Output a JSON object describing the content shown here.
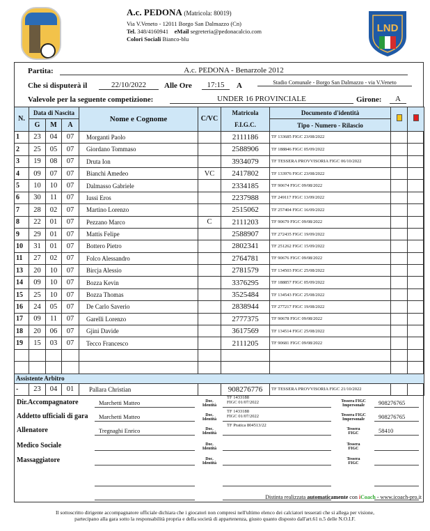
{
  "header": {
    "club": "A.c. PEDONA",
    "matricola": "(Matricola: 80019)",
    "address": "Via V.Veneto - 12011 Borgo San Dalmazzo (Cn)",
    "tel_label": "Tel.",
    "tel": "348/4160941",
    "email_label": "eMail",
    "email": "segreteria@pedonacalcio.com",
    "colors_label": "Colori Sociali",
    "colors": "Bianco-blu",
    "logo_left_text": "A.C. PEDONA BORGO S. DALMAZZO",
    "logo_right_text": "LND"
  },
  "match": {
    "partita_label": "Partita:",
    "partita": "A.c. PEDONA - Benarzole 2012",
    "date_label": "Che si disputerà il",
    "date": "22/10/2022",
    "time_label": "Alle Ore",
    "time": "17:15",
    "at_label": "A",
    "venue": "Stadio Comunale - Borgo San Dalmazzo - via V.Veneto",
    "comp_label": "Valevole per la seguente competizione:",
    "competition": "UNDER 16 PROVINCIALE",
    "girone_label": "Girone:",
    "girone": "A"
  },
  "columns": {
    "n": "N.",
    "birth": "Data di Nascita",
    "g": "G",
    "m": "M",
    "a": "A",
    "name": "Nome e Cognome",
    "cvc": "C/VC",
    "mat1": "Matricola",
    "mat2": "F.I.G.C.",
    "doc1": "Documento d'identità",
    "doc2": "Tipo - Numero - Rilascio",
    "yellow": "#f5c518",
    "red": "#e02020"
  },
  "players": [
    {
      "n": "1",
      "g": "23",
      "m": "04",
      "a": "07",
      "name": "Morganti Paolo",
      "cvc": "",
      "mat": "2111186",
      "doc": "TF  133685  FIGC 23/08/2022"
    },
    {
      "n": "2",
      "g": "25",
      "m": "05",
      "a": "07",
      "name": "Giordano Tommaso",
      "cvc": "",
      "mat": "2588906",
      "doc": "TF  188846  FIGC 05/09/2022"
    },
    {
      "n": "3",
      "g": "19",
      "m": "08",
      "a": "07",
      "name": "Druta Ion",
      "cvc": "",
      "mat": "3934079",
      "doc": "TF  TESSERA PROVVISORIA  FIGC 06/10/2022"
    },
    {
      "n": "4",
      "g": "09",
      "m": "07",
      "a": "07",
      "name": "Bianchi Amedeo",
      "cvc": "VC",
      "mat": "2417802",
      "doc": "TF  133976  FIGC 23/08/2022"
    },
    {
      "n": "5",
      "g": "10",
      "m": "10",
      "a": "07",
      "name": "Dalmasso Gabriele",
      "cvc": "",
      "mat": "2334185",
      "doc": "TF  90674  FIGC 09/08/2022"
    },
    {
      "n": "6",
      "g": "30",
      "m": "11",
      "a": "07",
      "name": "Iussi Eros",
      "cvc": "",
      "mat": "2237988",
      "doc": "TF  249117  FIGC 13/09/2022"
    },
    {
      "n": "7",
      "g": "28",
      "m": "02",
      "a": "07",
      "name": "Martino Lorenzo",
      "cvc": "",
      "mat": "2515062",
      "doc": "TF  257404  FIGC 16/09/2022"
    },
    {
      "n": "8",
      "g": "22",
      "m": "01",
      "a": "07",
      "name": "Pezzano Marco",
      "cvc": "C",
      "mat": "2111203",
      "doc": "TF  90679  FIGC 09/08/2022"
    },
    {
      "n": "9",
      "g": "29",
      "m": "01",
      "a": "07",
      "name": "Mattis Felipe",
      "cvc": "",
      "mat": "2588907",
      "doc": "TF  272435  FIGC 19/09/2022"
    },
    {
      "n": "10",
      "g": "31",
      "m": "01",
      "a": "07",
      "name": "Bottero Pietro",
      "cvc": "",
      "mat": "2802341",
      "doc": "TF  251262  FIGC 15/09/2022"
    },
    {
      "n": "11",
      "g": "27",
      "m": "02",
      "a": "07",
      "name": "Folco Alessandro",
      "cvc": "",
      "mat": "2764781",
      "doc": "TF  90676  FIGC 09/08/2022"
    },
    {
      "n": "13",
      "g": "20",
      "m": "10",
      "a": "07",
      "name": "Bircja Alessio",
      "cvc": "",
      "mat": "2781579",
      "doc": "TF  134503  FIGC 25/08/2022"
    },
    {
      "n": "14",
      "g": "09",
      "m": "10",
      "a": "07",
      "name": "Bozza Kevin",
      "cvc": "",
      "mat": "3376295",
      "doc": "TF  188857  FIGC 05/09/2022"
    },
    {
      "n": "15",
      "g": "25",
      "m": "10",
      "a": "07",
      "name": "Bozza Thomas",
      "cvc": "",
      "mat": "3525484",
      "doc": "TF  134543  FIGC 25/08/2022"
    },
    {
      "n": "16",
      "g": "24",
      "m": "05",
      "a": "07",
      "name": "De Carlo Saverio",
      "cvc": "",
      "mat": "2838944",
      "doc": "TF  277217  FIGC 19/08/2022"
    },
    {
      "n": "17",
      "g": "09",
      "m": "11",
      "a": "07",
      "name": "Garelli Lorenzo",
      "cvc": "",
      "mat": "2777375",
      "doc": "TF  90678  FIGC 09/08/2022"
    },
    {
      "n": "18",
      "g": "20",
      "m": "06",
      "a": "07",
      "name": "Gjini Davide",
      "cvc": "",
      "mat": "3617569",
      "doc": "TF  134514  FIGC 25/08/2022"
    },
    {
      "n": "19",
      "g": "15",
      "m": "03",
      "a": "07",
      "name": "Tecco Francesco",
      "cvc": "",
      "mat": "2111205",
      "doc": "TF  90681  FIGC 09/08/2022"
    }
  ],
  "assistant": {
    "section": "Assistente Arbitro",
    "n": "-",
    "g": "23",
    "m": "04",
    "a": "01",
    "name": "Pallara Christian",
    "mat": "908276776",
    "doc": "TF  TESSERA PROVVISORIA  FIGC 21/10/2022"
  },
  "staff": {
    "doc_label1": "Doc.",
    "doc_label2": "Identità",
    "tess_label1": "Tessera FIGC",
    "tess_label2": "Impersonale",
    "tess_short1": "Tessera",
    "tess_short2": "FIGC",
    "dir": {
      "label": "Dir.Accompagnatore",
      "name": "Marchetti Matteo",
      "doc1": "TF  1433188",
      "doc2": "FIGC 01/07/2022",
      "tess": "908276765"
    },
    "addetto": {
      "label": "Addetto ufficiali di gara",
      "name": "Marchetti Matteo",
      "doc1": "TF  1433188",
      "doc2": "FIGC 01/07/2022",
      "tess": "908276765"
    },
    "allenatore": {
      "label": "Allenatore",
      "name": "Tregnaghi Enrico",
      "doc1": "TF  Pratica 804513/22",
      "tess": "58410"
    },
    "medico": {
      "label": "Medico Sociale"
    },
    "massaggiatore": {
      "label": "Massaggiatore"
    }
  },
  "footer": {
    "made_prefix": "Distinta realizzata",
    "made_bold": "automaticamente",
    "made_con": "con",
    "brand_i": "i",
    "brand_coach": "Coach",
    "made_suffix": "- www.icoach-pro.it",
    "disclaimer1": "Il sottoscritto dirigente accompagnatore ufficiale dichiara che i giocatori non compresi nell'ultimo elenco dei calciatori tesserati che si allega per visione,",
    "disclaimer2": "partecipano alla gara sotto la responsabilità propria e della società di appartenenza, giusto quanto disposto dall'art.61 n.5 delle N.O.I.F."
  }
}
